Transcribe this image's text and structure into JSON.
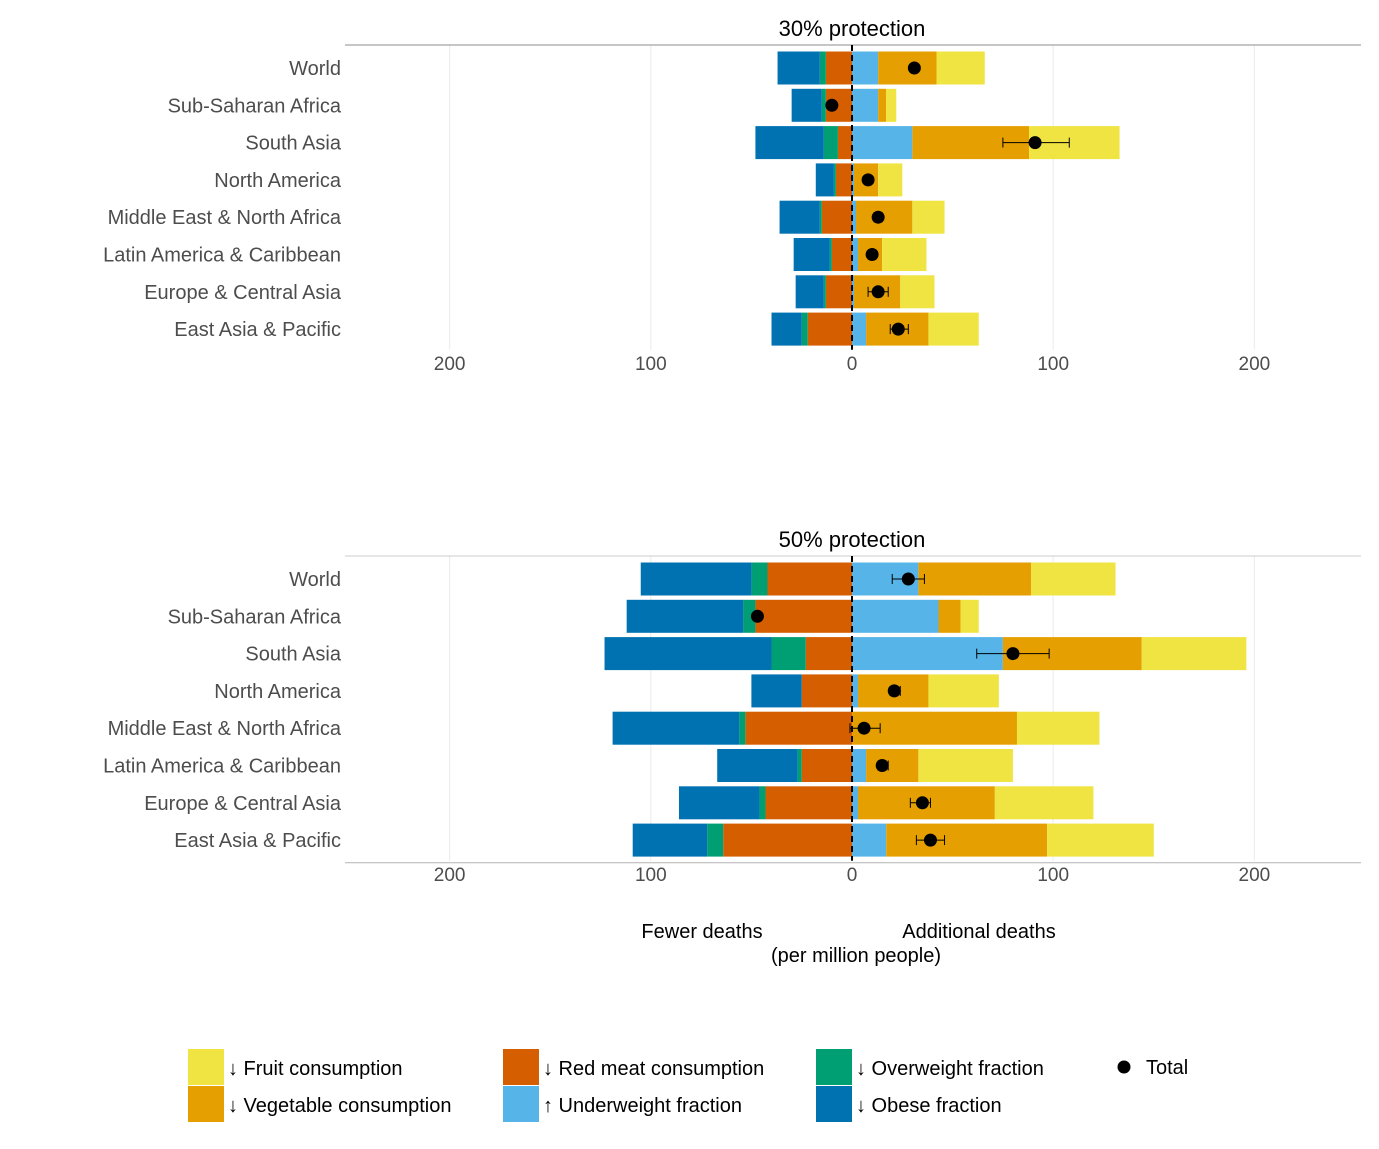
{
  "chart_data": [
    {
      "type": "bar",
      "title": "30% protection",
      "categories": [
        "World",
        "Sub-Saharan Africa",
        "South Asia",
        "North America",
        "Middle East & North Africa",
        "Latin America & Caribbean",
        "Europe & Central Asia",
        "East Asia & Pacific"
      ],
      "x_ticks": [
        {
          "value": -200,
          "label": "200"
        },
        {
          "value": -100,
          "label": "100"
        },
        {
          "value": 0,
          "label": "0"
        },
        {
          "value": 100,
          "label": "100"
        },
        {
          "value": 200,
          "label": "200"
        }
      ],
      "xlim": [
        -252,
        253
      ],
      "series": [
        {
          "key": "red_meat",
          "color": "#D55E00",
          "values": [
            -13,
            -13,
            -7,
            -8,
            -15,
            -10,
            -13,
            -22
          ]
        },
        {
          "key": "overweight",
          "color": "#009E73",
          "values": [
            -3,
            -2,
            -7,
            -1,
            -1,
            -1,
            -1,
            -3
          ]
        },
        {
          "key": "obese",
          "color": "#0072B2",
          "values": [
            -21,
            -15,
            -34,
            -9,
            -20,
            -18,
            -14,
            -15
          ]
        },
        {
          "key": "underweight",
          "color": "#56B4E9",
          "values": [
            13,
            13,
            30,
            1,
            2,
            3,
            1,
            7
          ]
        },
        {
          "key": "vegetable",
          "color": "#E69F00",
          "values": [
            29,
            4,
            58,
            12,
            28,
            12,
            23,
            31
          ]
        },
        {
          "key": "fruit",
          "color": "#F0E442",
          "values": [
            24,
            5,
            45,
            12,
            16,
            22,
            17,
            25
          ]
        }
      ],
      "total": [
        {
          "value": 31,
          "low": 31,
          "high": 31
        },
        {
          "value": -10,
          "low": -10,
          "high": -10
        },
        {
          "value": 91,
          "low": 75,
          "high": 108
        },
        {
          "value": 8,
          "low": 8,
          "high": 8
        },
        {
          "value": 13,
          "low": 11,
          "high": 15
        },
        {
          "value": 10,
          "low": 9,
          "high": 12
        },
        {
          "value": 13,
          "low": 8,
          "high": 18
        },
        {
          "value": 23,
          "low": 19,
          "high": 28
        }
      ]
    },
    {
      "type": "bar",
      "title": "50% protection",
      "categories": [
        "World",
        "Sub-Saharan Africa",
        "South Asia",
        "North America",
        "Middle East & North Africa",
        "Latin America & Caribbean",
        "Europe & Central Asia",
        "East Asia & Pacific"
      ],
      "x_ticks": [
        {
          "value": -200,
          "label": "200"
        },
        {
          "value": -100,
          "label": "100"
        },
        {
          "value": 0,
          "label": "0"
        },
        {
          "value": 100,
          "label": "100"
        },
        {
          "value": 200,
          "label": "200"
        }
      ],
      "xlim": [
        -252,
        253
      ],
      "series": [
        {
          "key": "red_meat",
          "color": "#D55E00",
          "values": [
            -42,
            -48,
            -23,
            -25,
            -53,
            -25,
            -43,
            -64
          ]
        },
        {
          "key": "overweight",
          "color": "#009E73",
          "values": [
            -8,
            -6,
            -17,
            0,
            -3,
            -2,
            -3,
            -8
          ]
        },
        {
          "key": "obese",
          "color": "#0072B2",
          "values": [
            -55,
            -58,
            -83,
            -25,
            -63,
            -40,
            -40,
            -37
          ]
        },
        {
          "key": "underweight",
          "color": "#56B4E9",
          "values": [
            33,
            43,
            75,
            3,
            0,
            7,
            3,
            17
          ]
        },
        {
          "key": "vegetable",
          "color": "#E69F00",
          "values": [
            56,
            11,
            69,
            35,
            82,
            26,
            68,
            80
          ]
        },
        {
          "key": "fruit",
          "color": "#F0E442",
          "values": [
            42,
            9,
            52,
            35,
            41,
            47,
            49,
            53
          ]
        }
      ],
      "total": [
        {
          "value": 28,
          "low": 20,
          "high": 36
        },
        {
          "value": -47,
          "low": -47,
          "high": -47
        },
        {
          "value": 80,
          "low": 62,
          "high": 98
        },
        {
          "value": 21,
          "low": 19,
          "high": 24
        },
        {
          "value": 6,
          "low": -1,
          "high": 14
        },
        {
          "value": 15,
          "low": 13,
          "high": 18
        },
        {
          "value": 35,
          "low": 29,
          "high": 39
        },
        {
          "value": 39,
          "low": 32,
          "high": 46
        }
      ]
    }
  ],
  "axis_note": {
    "left": "Fewer deaths",
    "right": "Additional deaths",
    "units": "(per million people)"
  },
  "legend": [
    {
      "key": "fruit",
      "label": "↓ Fruit consumption",
      "color": "#F0E442"
    },
    {
      "key": "vegetable",
      "label": "↓ Vegetable consumption",
      "color": "#E69F00"
    },
    {
      "key": "red_meat",
      "label": "↓ Red meat consumption",
      "color": "#D55E00"
    },
    {
      "key": "underweight",
      "label": "↑ Underweight fraction",
      "color": "#56B4E9"
    },
    {
      "key": "overweight",
      "label": "↓ Overweight fraction",
      "color": "#009E73"
    },
    {
      "key": "obese",
      "label": "↓ Obese fraction",
      "color": "#0072B2"
    },
    {
      "key": "total",
      "label": "Total",
      "color": "#000000"
    }
  ]
}
